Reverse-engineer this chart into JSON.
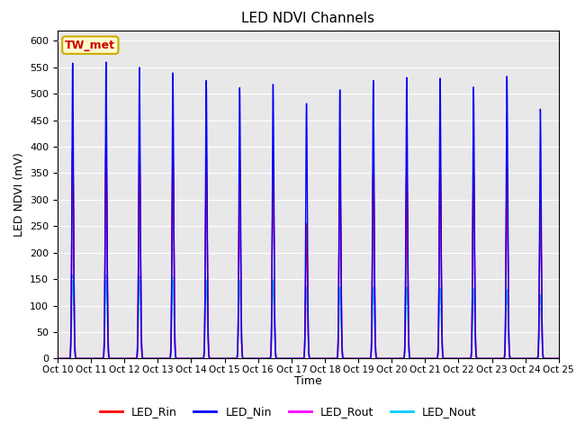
{
  "title": "LED NDVI Channels",
  "xlabel": "Time",
  "ylabel": "LED NDVI (mV)",
  "annotation_label": "TW_met",
  "annotation_color": "#cc0000",
  "annotation_bg": "#ffffcc",
  "annotation_border": "#ccaa00",
  "x_tick_labels": [
    "Oct 10",
    "Oct 11",
    "Oct 12",
    "Oct 13",
    "Oct 14",
    "Oct 15",
    "Oct 16",
    "Oct 17",
    "Oct 18",
    "Oct 19",
    "Oct 20",
    "Oct 21",
    "Oct 22",
    "Oct 23",
    "Oct 24",
    "Oct 25"
  ],
  "ylim": [
    0,
    620
  ],
  "yticks": [
    0,
    50,
    100,
    150,
    200,
    250,
    300,
    350,
    400,
    450,
    500,
    550,
    600
  ],
  "colors": {
    "LED_Rin": "#ff0000",
    "LED_Nin": "#0000ff",
    "LED_Rout": "#ff00ff",
    "LED_Nout": "#00ccff"
  },
  "legend_labels": [
    "LED_Rin",
    "LED_Nin",
    "LED_Rout",
    "LED_Nout"
  ],
  "background_color": "#e8e8e8",
  "spike_peaks_Nin": [
    558,
    560,
    550,
    540,
    526,
    513,
    520,
    484,
    510,
    527,
    532,
    530,
    513,
    533,
    471
  ],
  "spike_peaks_Rin": [
    400,
    405,
    400,
    400,
    387,
    380,
    370,
    255,
    360,
    365,
    363,
    367,
    360,
    364,
    300
  ],
  "spike_peaks_Rout": [
    398,
    402,
    398,
    395,
    347,
    275,
    372,
    255,
    358,
    360,
    362,
    366,
    355,
    322,
    295
  ],
  "spike_peaks_Nout": [
    158,
    157,
    155,
    153,
    150,
    148,
    150,
    135,
    135,
    135,
    135,
    133,
    132,
    130,
    120
  ],
  "num_cycles": 15,
  "pts_per_cycle": 200
}
